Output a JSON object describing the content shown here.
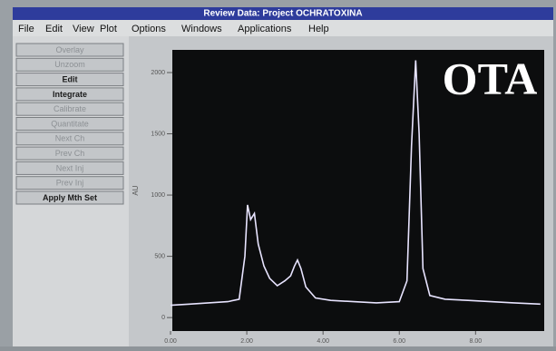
{
  "window": {
    "title": "Review Data: Project OCHRATOXINA"
  },
  "menu": [
    "File",
    "Edit",
    "View",
    "Plot",
    "Options",
    "Windows",
    "Applications",
    "Help"
  ],
  "buttons": [
    {
      "label": "Overlay",
      "enabled": false
    },
    {
      "label": "Unzoom",
      "enabled": false
    },
    {
      "label": "Edit",
      "enabled": true
    },
    {
      "label": "Integrate",
      "enabled": true
    },
    {
      "label": "Calibrate",
      "enabled": false
    },
    {
      "label": "Quantitate",
      "enabled": false
    },
    {
      "label": "Next Ch",
      "enabled": false
    },
    {
      "label": "Prev Ch",
      "enabled": false
    },
    {
      "label": "Next Inj",
      "enabled": false
    },
    {
      "label": "Prev Inj",
      "enabled": false
    },
    {
      "label": "Apply Mth Set",
      "enabled": true
    }
  ],
  "chart_data": {
    "type": "line",
    "ylabel": "AU",
    "annotation": "OTA",
    "color": "#e8e4ff",
    "xlim": [
      0,
      9.8
    ],
    "ylim": [
      -110,
      2185
    ],
    "xticks": [
      {
        "value": 0,
        "label": "0.00"
      },
      {
        "value": 2,
        "label": "2.00"
      },
      {
        "value": 4,
        "label": "4.00"
      },
      {
        "value": 6,
        "label": "6.00"
      },
      {
        "value": 8,
        "label": "8.00"
      }
    ],
    "yticks": [
      0,
      500,
      1000,
      1500,
      2000
    ],
    "x": [
      0,
      0.5,
      1,
      1.5,
      1.8,
      1.95,
      2.02,
      2.1,
      2.2,
      2.3,
      2.45,
      2.6,
      2.8,
      3.0,
      3.15,
      3.25,
      3.33,
      3.42,
      3.55,
      3.8,
      4.2,
      4.8,
      5.4,
      6.0,
      6.2,
      6.32,
      6.43,
      6.52,
      6.62,
      6.8,
      7.2,
      7.8,
      8.4,
      9.0,
      9.7
    ],
    "values": [
      100,
      110,
      120,
      130,
      150,
      500,
      920,
      800,
      850,
      600,
      420,
      320,
      260,
      300,
      340,
      420,
      470,
      400,
      250,
      160,
      140,
      130,
      120,
      130,
      300,
      1400,
      2100,
      1500,
      400,
      180,
      150,
      140,
      130,
      120,
      110
    ]
  }
}
